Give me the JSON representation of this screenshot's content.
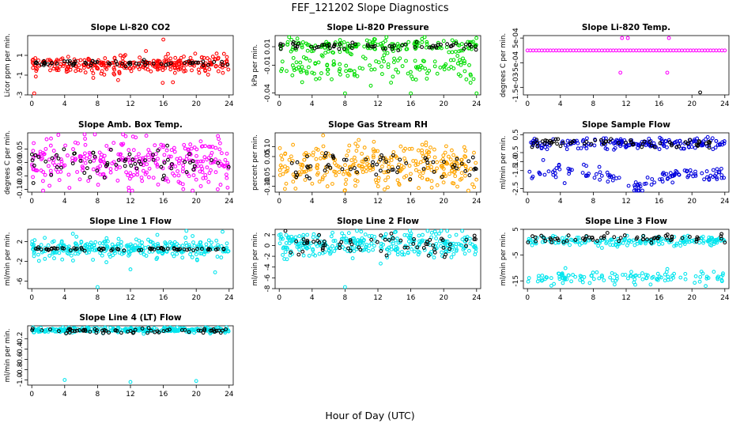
{
  "chart_data": {
    "type": "scatter",
    "title": "FEF_121202  Slope Diagnostics",
    "xlabel": "Hour of Day (UTC)",
    "x_ticks": [
      0,
      4,
      8,
      12,
      16,
      20,
      24
    ],
    "xlim": [
      -0.5,
      24.5
    ],
    "overlay_color": "#000000",
    "panels": [
      {
        "title": "Slope Li-820 CO2",
        "ylabel": "Licor ppm per min.",
        "ylim": [
          -3,
          3
        ],
        "yticks": [
          1,
          -1,
          -3
        ],
        "color": "#ff0000",
        "bands": [
          {
            "center": 0.1,
            "spread": 0.45,
            "frac": 1.0
          }
        ],
        "overlay": {
          "center": 0.2,
          "spread": 0.12
        },
        "outliers": [
          [
            16,
            2.6
          ],
          [
            0.3,
            -2.9
          ],
          [
            10.5,
            -1.5
          ]
        ]
      },
      {
        "title": "Slope Li-820 Pressure",
        "ylabel": "kPa per min.",
        "ylim": [
          -0.042,
          0.022
        ],
        "yticks": [
          0.01,
          -0.01,
          -0.04
        ],
        "color": "#00dd00",
        "bands": [
          {
            "center": 0.011,
            "spread": 0.004,
            "frac": 0.55
          },
          {
            "center": -0.012,
            "spread": 0.008,
            "frac": 0.45
          }
        ],
        "overlay": {
          "center": 0.011,
          "spread": 0.002
        },
        "outliers": [
          [
            8,
            -0.042
          ],
          [
            16,
            -0.041
          ],
          [
            24,
            -0.041
          ],
          [
            1.2,
            0.021
          ]
        ]
      },
      {
        "title": "Slope Li-820 Temp.",
        "ylabel": "degrees C per min.",
        "ylim": [
          -0.0018,
          0.0006
        ],
        "yticks": [
          0.0005,
          -0.0005,
          -0.0015
        ],
        "ytick_labels": [
          "5e-04",
          "-5e-04",
          "-1.5e-03"
        ],
        "color": "#ff00ff",
        "bands": [
          {
            "center": 0,
            "spread": 0,
            "frac": 1.0
          }
        ],
        "line_points": true,
        "overlay": {
          "center": 0,
          "spread": 0
        },
        "outliers": [
          [
            11.5,
            0.0005
          ],
          [
            12.2,
            0.0005
          ],
          [
            17.2,
            0.0005
          ],
          [
            11.3,
            -0.0009
          ],
          [
            17.0,
            -0.0009
          ],
          [
            21,
            -0.0017
          ]
        ]
      },
      {
        "title": "Slope Amb. Box Temp.",
        "ylabel": "degrees C per min.",
        "ylim": [
          -0.11,
          0.11
        ],
        "yticks": [
          0.05,
          0.0,
          -0.05,
          -0.1
        ],
        "ytick_labels": [
          "0.05",
          "0.00",
          "-0.05",
          "-0.10"
        ],
        "color": "#ff00ff",
        "bands": [
          {
            "center": 0.0,
            "spread": 0.045,
            "frac": 1.0
          }
        ],
        "overlay": {
          "center": 0.0,
          "spread": 0.03
        },
        "outliers": []
      },
      {
        "title": "Slope Gas Stream RH",
        "ylabel": "percent per min.",
        "ylim": [
          -0.13,
          0.17
        ],
        "yticks": [
          0.1,
          0.05,
          -0.05,
          -0.1
        ],
        "ytick_labels": [
          "0.10",
          "0.05",
          "-0.05",
          "-0.10"
        ],
        "color": "#ffa500",
        "bands": [
          {
            "center": 0.01,
            "spread": 0.06,
            "frac": 1.0
          }
        ],
        "overlay": {
          "center": 0.01,
          "spread": 0.035
        },
        "outliers": [
          [
            8,
            -0.12
          ],
          [
            23.5,
            -0.09
          ]
        ]
      },
      {
        "title": "Slope Sample Flow",
        "ylabel": "ml/min per min.",
        "ylim": [
          -2.7,
          0.6
        ],
        "yticks": [
          0.5,
          -0.5,
          -1.0,
          -1.5,
          -2.5
        ],
        "ytick_labels": [
          "0.5",
          "-0.5",
          "-1.0",
          "-1.5",
          "-2.5"
        ],
        "color": "#0000dd",
        "bands": [
          {
            "center": 0.0,
            "spread": 0.15,
            "frac": 0.6
          },
          {
            "center": -1.7,
            "spread": 0.2,
            "frac": 0.4,
            "dip": true
          }
        ],
        "overlay": {
          "center": 0.05,
          "spread": 0.12
        },
        "outliers": []
      },
      {
        "title": "Slope Line 1 Flow",
        "ylabel": "ml/min per min.",
        "ylim": [
          -7.5,
          4.5
        ],
        "yticks": [
          2,
          -2,
          -6
        ],
        "color": "#00e5ee",
        "bands": [
          {
            "center": 0.5,
            "spread": 1.0,
            "frac": 1.0
          }
        ],
        "overlay": {
          "center": 0.5,
          "spread": 0.15
        },
        "outliers": [
          [
            8,
            -7.2
          ],
          [
            23.2,
            4.0
          ],
          [
            22.3,
            -4.2
          ],
          [
            12,
            -3.6
          ],
          [
            5,
            3.6
          ]
        ]
      },
      {
        "title": "Slope Line 2 Flow",
        "ylabel": "ml/min per min.",
        "ylim": [
          -8,
          3
        ],
        "yticks": [
          2,
          0,
          -2,
          -4,
          -6,
          -8
        ],
        "color": "#00e5ee",
        "bands": [
          {
            "center": 0.2,
            "spread": 1.2,
            "frac": 1.0
          }
        ],
        "overlay": {
          "center": 0.0,
          "spread": 1.0
        },
        "outliers": [
          [
            8,
            -7.8
          ]
        ]
      },
      {
        "title": "Slope Line 3 Flow",
        "ylabel": "ml/min per min.",
        "ylim": [
          -18,
          5
        ],
        "yticks": [
          5,
          -5,
          -15
        ],
        "color": "#00e5ee",
        "bands": [
          {
            "center": 0.5,
            "spread": 1.0,
            "frac": 0.6
          },
          {
            "center": -13.5,
            "spread": 1.3,
            "frac": 0.4
          }
        ],
        "overlay": {
          "center": 1.5,
          "spread": 1.0
        },
        "outliers": []
      },
      {
        "title": "Slope Line 4 (LT) Flow",
        "ylabel": "ml/min per min.",
        "ylim": [
          -1.1,
          0.05
        ],
        "yticks": [
          -0.2,
          -0.4,
          -0.6,
          -0.8,
          -1.0
        ],
        "ytick_labels": [
          "-0.2",
          "-0.4",
          "-0.6",
          "-0.8",
          "-1.0"
        ],
        "color": "#00e5ee",
        "bands": [
          {
            "center": -0.03,
            "spread": 0.025,
            "frac": 1.0
          }
        ],
        "overlay": {
          "center": -0.05,
          "spread": 0.02
        },
        "outliers": [
          [
            4,
            -1.0
          ],
          [
            12,
            -1.04
          ],
          [
            20,
            -1.02
          ],
          [
            1.0,
            -0.05
          ]
        ]
      }
    ]
  }
}
